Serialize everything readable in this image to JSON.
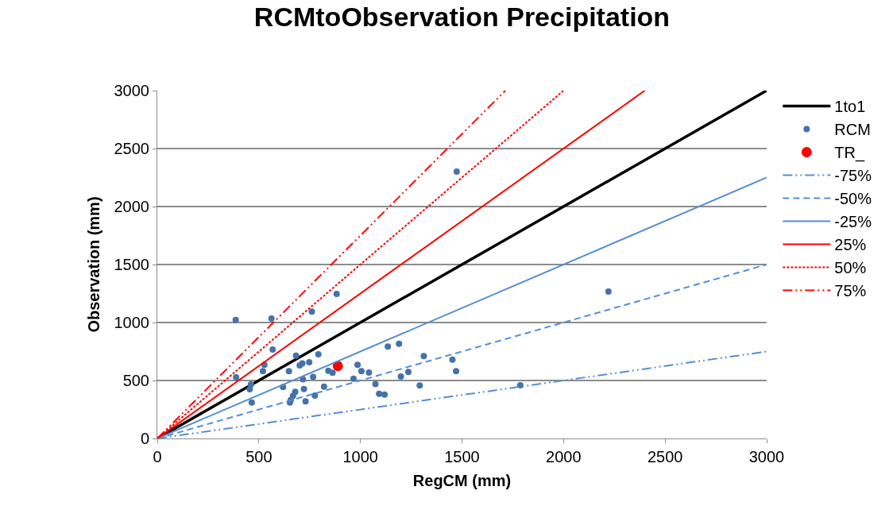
{
  "chart_data": {
    "type": "scatter",
    "title": "RCMtoObservation Precipitation",
    "xlabel": "RegCM (mm)",
    "ylabel": "Observation (mm)",
    "xlim": [
      0,
      3000
    ],
    "xticks": [
      0,
      500,
      1000,
      1500,
      2000,
      2500,
      3000
    ],
    "ylim": [
      0,
      3000
    ],
    "yticks": [
      0,
      500,
      1000,
      1500,
      2000,
      2500,
      3000
    ],
    "grid": "y",
    "legend": "right",
    "series": [
      {
        "name": "1to1",
        "type": "line",
        "color": "#000000",
        "line_style": "solid",
        "marker": "none",
        "x": [
          0,
          3000
        ],
        "values": [
          0,
          3000
        ]
      },
      {
        "name": "RCM",
        "color": "#4672aa",
        "marker": "circle",
        "x": [
          386,
          562,
          883,
          761,
          568,
          388,
          527,
          520,
          461,
          455,
          465,
          683,
          793,
          701,
          714,
          748,
          648,
          717,
          767,
          619,
          722,
          679,
          668,
          657,
          653,
          730,
          776,
          821,
          842,
          863,
          986,
          1005,
          1042,
          966,
          1074,
          1092,
          1119,
          1135,
          1190,
          1236,
          1199,
          1312,
          1292,
          1453,
          1471,
          1474,
          2221,
          1787
        ],
        "values": [
          1023,
          1034,
          1247,
          1094,
          767,
          527,
          635,
          580,
          466,
          425,
          310,
          714,
          726,
          630,
          648,
          657,
          580,
          511,
          530,
          443,
          427,
          402,
          368,
          333,
          310,
          320,
          370,
          447,
          584,
          566,
          635,
          580,
          568,
          516,
          470,
          386,
          379,
          792,
          817,
          573,
          534,
          710,
          457,
          680,
          580,
          2301,
          1267,
          459
        ]
      },
      {
        "name": "TR_",
        "color": "#ff0000",
        "marker": "circle",
        "x": [
          889
        ],
        "values": [
          625
        ]
      },
      {
        "name": "-75%",
        "type": "line",
        "color": "#558ed5",
        "line_style": "dashdot",
        "marker": "none",
        "x": [
          0,
          3000
        ],
        "values": [
          0,
          750
        ]
      },
      {
        "name": "-50%",
        "type": "line",
        "color": "#558ed5",
        "line_style": "dashed",
        "marker": "none",
        "x": [
          0,
          3000
        ],
        "values": [
          0,
          1500
        ]
      },
      {
        "name": "-25%",
        "type": "line",
        "color": "#558ed5",
        "line_style": "solid",
        "marker": "none",
        "x": [
          0,
          3000
        ],
        "values": [
          0,
          2250
        ]
      },
      {
        "name": "25%",
        "type": "line",
        "color": "#ff0000",
        "line_style": "solid",
        "marker": "none",
        "x": [
          0,
          2400
        ],
        "values": [
          0,
          3000
        ]
      },
      {
        "name": "50%",
        "type": "line",
        "color": "#ff0000",
        "line_style": "dotted",
        "marker": "none",
        "x": [
          0,
          2000
        ],
        "values": [
          0,
          3000
        ]
      },
      {
        "name": "75%",
        "type": "line",
        "color": "#ff0000",
        "line_style": "dashdot",
        "marker": "none",
        "x": [
          0,
          1714
        ],
        "values": [
          0,
          3000
        ]
      }
    ]
  }
}
